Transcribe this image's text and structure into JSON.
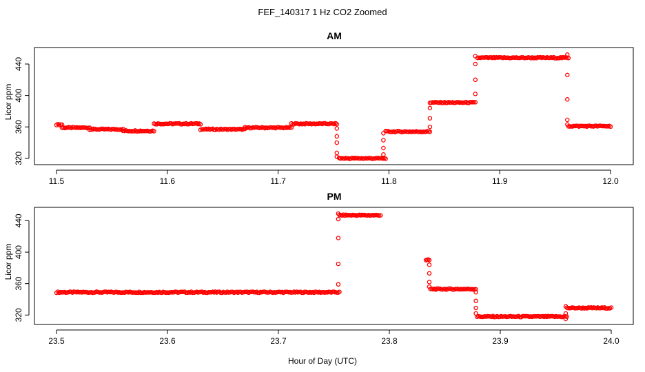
{
  "figure": {
    "title": "FEF_140317  1 Hz CO2 Zoomed",
    "xlabel": "Hour of Day (UTC)"
  },
  "chart_data": [
    {
      "type": "scatter",
      "title": "AM",
      "xlabel": "",
      "ylabel": "Licor ppm",
      "xlim": [
        11.5,
        12.0
      ],
      "ylim": [
        312,
        461
      ],
      "xticks": [
        11.5,
        11.6,
        11.7,
        11.8,
        11.9,
        12.0
      ],
      "xtick_labels": [
        "11.5",
        "11.6",
        "11.7",
        "11.8",
        "11.9",
        "12.0"
      ],
      "yticks": [
        320,
        360,
        400,
        440
      ],
      "ytick_labels": [
        "320",
        "360",
        "400",
        "440"
      ],
      "grid": false,
      "marker": "open-circle",
      "color": "#ff0000",
      "series": [
        {
          "segments": [
            {
              "x0": 11.5,
              "x1": 11.505,
              "y": 363
            },
            {
              "x0": 11.505,
              "x1": 11.53,
              "y": 359
            },
            {
              "x0": 11.53,
              "x1": 11.56,
              "y": 357
            },
            {
              "x0": 11.56,
              "x1": 11.588,
              "y": 355
            },
            {
              "x0": 11.588,
              "x1": 11.63,
              "y": 364
            },
            {
              "x0": 11.63,
              "x1": 11.67,
              "y": 357
            },
            {
              "x0": 11.67,
              "x1": 11.712,
              "y": 359
            },
            {
              "x0": 11.712,
              "x1": 11.753,
              "y": 364
            },
            {
              "x0": 11.755,
              "x1": 11.797,
              "y": 320
            },
            {
              "x0": 11.797,
              "x1": 11.837,
              "y": 354
            },
            {
              "x0": 11.837,
              "x1": 11.878,
              "y": 391
            },
            {
              "x0": 11.88,
              "x1": 11.962,
              "y": 448
            },
            {
              "x0": 11.962,
              "x1": 12.0,
              "y": 361
            }
          ],
          "transitions": [
            {
              "x": 11.753,
              "y": [
                358,
                348,
                340,
                327,
                322
              ]
            },
            {
              "x": 11.795,
              "y": [
                325,
                333,
                343,
                352
              ]
            },
            {
              "x": 11.837,
              "y": [
                360,
                371,
                384
              ]
            },
            {
              "x": 11.878,
              "y": [
                402,
                420,
                440,
                450
              ]
            },
            {
              "x": 11.961,
              "y": [
                452,
                426,
                395,
                369,
                363
              ]
            }
          ]
        }
      ]
    },
    {
      "type": "scatter",
      "title": "PM",
      "xlabel": "",
      "ylabel": "Licor ppm",
      "xlim": [
        23.5,
        24.0
      ],
      "ylim": [
        308,
        457
      ],
      "xticks": [
        23.5,
        23.6,
        23.7,
        23.8,
        23.9,
        24.0
      ],
      "xtick_labels": [
        "23.5",
        "23.6",
        "23.7",
        "23.8",
        "23.9",
        "24.0"
      ],
      "yticks": [
        320,
        360,
        400,
        440
      ],
      "ytick_labels": [
        "320",
        "360",
        "400",
        "440"
      ],
      "grid": false,
      "marker": "open-circle",
      "color": "#ff0000",
      "series": [
        {
          "segments": [
            {
              "x0": 23.5,
              "x1": 23.755,
              "y": 349
            },
            {
              "x0": 23.755,
              "x1": 23.792,
              "y": 447
            },
            {
              "x0": 23.833,
              "x1": 23.836,
              "y": 390
            },
            {
              "x0": 23.837,
              "x1": 23.878,
              "y": 353
            },
            {
              "x0": 23.879,
              "x1": 23.96,
              "y": 318
            },
            {
              "x0": 23.96,
              "x1": 24.0,
              "y": 329
            }
          ],
          "transitions": [
            {
              "x": 23.754,
              "y": [
                359,
                385,
                418,
                442,
                449
              ]
            },
            {
              "x": 23.836,
              "y": [
                384,
                373,
                362,
                356
              ]
            },
            {
              "x": 23.878,
              "y": [
                349,
                338,
                329,
                322
              ]
            },
            {
              "x": 23.959,
              "y": [
                315,
                322,
                331
              ]
            }
          ]
        }
      ]
    }
  ]
}
